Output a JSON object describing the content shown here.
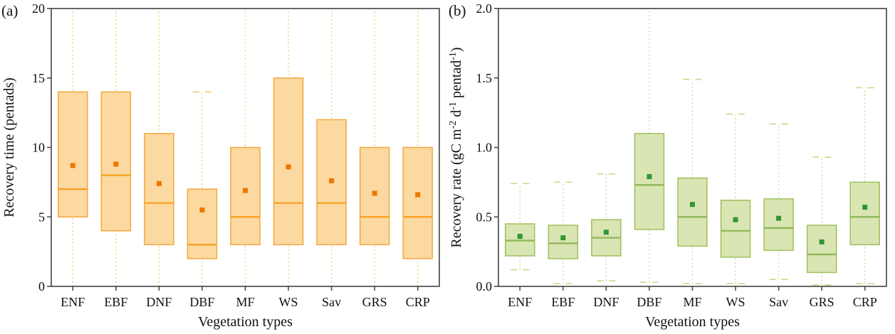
{
  "figure": {
    "background": "#ffffff",
    "frame_color": "#4d4d4d",
    "text_color": "#111111"
  },
  "chart_data": [
    {
      "type": "box",
      "panel_letter": "(a)",
      "ylabel_segments": [
        [
          "t",
          "Recovery time (pentads)"
        ]
      ],
      "xlabel": "Vegetation types",
      "ylim": [
        0,
        20
      ],
      "yticks": [
        0,
        5,
        10,
        15,
        20
      ],
      "ytick_labels": [
        "0",
        "5",
        "10",
        "15",
        "20"
      ],
      "categories": [
        "ENF",
        "EBF",
        "DNF",
        "DBF",
        "MF",
        "WS",
        "Sav",
        "GRS",
        "CRP"
      ],
      "legend": "none",
      "grid": false,
      "boxes": [
        {
          "cat": "ENF",
          "whisker_low": 0,
          "q1": 5,
          "median": 7,
          "q3": 14,
          "whisker_high": 20,
          "mean": 8.7,
          "cap_low": false,
          "cap_high": false
        },
        {
          "cat": "EBF",
          "whisker_low": 0,
          "q1": 4,
          "median": 8,
          "q3": 14,
          "whisker_high": 20,
          "mean": 8.8,
          "cap_low": false,
          "cap_high": false
        },
        {
          "cat": "DNF",
          "whisker_low": 0,
          "q1": 3,
          "median": 6,
          "q3": 11,
          "whisker_high": 20,
          "mean": 7.4,
          "cap_low": false,
          "cap_high": false
        },
        {
          "cat": "DBF",
          "whisker_low": 0,
          "q1": 2,
          "median": 3,
          "q3": 7,
          "whisker_high": 14,
          "mean": 5.5,
          "cap_low": false,
          "cap_high": true
        },
        {
          "cat": "MF",
          "whisker_low": 0,
          "q1": 3,
          "median": 5,
          "q3": 10,
          "whisker_high": 20,
          "mean": 6.9,
          "cap_low": false,
          "cap_high": false
        },
        {
          "cat": "WS",
          "whisker_low": 0,
          "q1": 3,
          "median": 6,
          "q3": 15,
          "whisker_high": 20,
          "mean": 8.6,
          "cap_low": false,
          "cap_high": false
        },
        {
          "cat": "Sav",
          "whisker_low": 0,
          "q1": 3,
          "median": 6,
          "q3": 12,
          "whisker_high": 20,
          "mean": 7.6,
          "cap_low": false,
          "cap_high": false
        },
        {
          "cat": "GRS",
          "whisker_low": 0,
          "q1": 3,
          "median": 5,
          "q3": 10,
          "whisker_high": 20,
          "mean": 6.7,
          "cap_low": false,
          "cap_high": false
        },
        {
          "cat": "CRP",
          "whisker_low": 0,
          "q1": 2,
          "median": 5,
          "q3": 10,
          "whisker_high": 20,
          "mean": 6.6,
          "cap_low": false,
          "cap_high": false
        }
      ],
      "colors": {
        "fill": "#FBD9A0",
        "edge": "#F3A841",
        "median": "#F79F1E",
        "mean": "#EE7600",
        "whisker": "#F8C670"
      }
    },
    {
      "type": "box",
      "panel_letter": "(b)",
      "ylabel_segments": [
        [
          "t",
          "Recovery rate (gC m"
        ],
        [
          "s",
          "-2"
        ],
        [
          "t",
          " d"
        ],
        [
          "s",
          "-1"
        ],
        [
          "t",
          " pentad"
        ],
        [
          "s",
          "-1"
        ],
        [
          "t",
          ")"
        ]
      ],
      "xlabel": "Vegetation types",
      "ylim": [
        0.0,
        2.0
      ],
      "yticks": [
        0.0,
        0.5,
        1.0,
        1.5,
        2.0
      ],
      "ytick_labels": [
        "0.0",
        "0.5",
        "1.0",
        "1.5",
        "2.0"
      ],
      "categories": [
        "ENF",
        "EBF",
        "DNF",
        "DBF",
        "MF",
        "WS",
        "Sav",
        "GRS",
        "CRP"
      ],
      "legend": "none",
      "grid": false,
      "boxes": [
        {
          "cat": "ENF",
          "whisker_low": 0.12,
          "q1": 0.22,
          "median": 0.33,
          "q3": 0.45,
          "whisker_high": 0.74,
          "mean": 0.36,
          "cap_low": true,
          "cap_high": true
        },
        {
          "cat": "EBF",
          "whisker_low": 0.02,
          "q1": 0.2,
          "median": 0.31,
          "q3": 0.44,
          "whisker_high": 0.75,
          "mean": 0.35,
          "cap_low": true,
          "cap_high": true
        },
        {
          "cat": "DNF",
          "whisker_low": 0.04,
          "q1": 0.22,
          "median": 0.35,
          "q3": 0.48,
          "whisker_high": 0.81,
          "mean": 0.39,
          "cap_low": true,
          "cap_high": true
        },
        {
          "cat": "DBF",
          "whisker_low": 0.03,
          "q1": 0.41,
          "median": 0.73,
          "q3": 1.1,
          "whisker_high": 2.0,
          "mean": 0.79,
          "cap_low": true,
          "cap_high": true
        },
        {
          "cat": "MF",
          "whisker_low": 0.02,
          "q1": 0.29,
          "median": 0.5,
          "q3": 0.78,
          "whisker_high": 1.49,
          "mean": 0.59,
          "cap_low": true,
          "cap_high": true
        },
        {
          "cat": "WS",
          "whisker_low": 0.02,
          "q1": 0.21,
          "median": 0.4,
          "q3": 0.62,
          "whisker_high": 1.24,
          "mean": 0.48,
          "cap_low": true,
          "cap_high": true
        },
        {
          "cat": "Sav",
          "whisker_low": 0.05,
          "q1": 0.26,
          "median": 0.42,
          "q3": 0.63,
          "whisker_high": 1.17,
          "mean": 0.49,
          "cap_low": true,
          "cap_high": true
        },
        {
          "cat": "GRS",
          "whisker_low": 0.01,
          "q1": 0.1,
          "median": 0.23,
          "q3": 0.44,
          "whisker_high": 0.93,
          "mean": 0.32,
          "cap_low": true,
          "cap_high": true
        },
        {
          "cat": "CRP",
          "whisker_low": 0.02,
          "q1": 0.3,
          "median": 0.5,
          "q3": 0.75,
          "whisker_high": 1.43,
          "mean": 0.57,
          "cap_low": true,
          "cap_high": true
        }
      ],
      "colors": {
        "fill": "#D9E5B2",
        "edge": "#A0BF5E",
        "median": "#8FB457",
        "mean": "#2F9633",
        "whisker": "#C8D98E"
      }
    }
  ]
}
